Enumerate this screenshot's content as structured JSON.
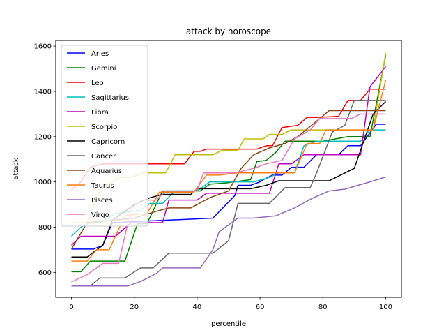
{
  "chart_data": {
    "type": "line",
    "title": "attack by horoscope",
    "xlabel": "percentile",
    "ylabel": "attack",
    "xlim": [
      -5,
      105
    ],
    "ylim": [
      490,
      1625
    ],
    "xticks": [
      0,
      20,
      40,
      60,
      80,
      100
    ],
    "yticks": [
      600,
      800,
      1000,
      1200,
      1400,
      1600
    ],
    "grid": false,
    "legend_position": "upper left",
    "series": [
      {
        "name": "Aries",
        "color": "#0000ff",
        "points": [
          [
            0,
            703
          ],
          [
            7,
            703
          ],
          [
            10,
            720
          ],
          [
            13,
            820
          ],
          [
            45,
            840
          ],
          [
            52,
            940
          ],
          [
            53,
            985
          ],
          [
            57,
            985
          ],
          [
            60,
            1000
          ],
          [
            61,
            1010
          ],
          [
            64,
            1030
          ],
          [
            67,
            1030
          ],
          [
            70,
            1065
          ],
          [
            74,
            1065
          ],
          [
            78,
            1120
          ],
          [
            85,
            1120
          ],
          [
            88,
            1160
          ],
          [
            92,
            1160
          ],
          [
            97,
            1255
          ],
          [
            100,
            1255
          ]
        ]
      },
      {
        "name": "Gemini",
        "color": "#008000",
        "points": [
          [
            0,
            603
          ],
          [
            3,
            603
          ],
          [
            6,
            650
          ],
          [
            17,
            650
          ],
          [
            21,
            815
          ],
          [
            24,
            815
          ],
          [
            29,
            960
          ],
          [
            41,
            960
          ],
          [
            44,
            990
          ],
          [
            49,
            995
          ],
          [
            57,
            1010
          ],
          [
            59,
            1090
          ],
          [
            62,
            1095
          ],
          [
            65,
            1130
          ],
          [
            68,
            1180
          ],
          [
            80,
            1180
          ],
          [
            88,
            1200
          ],
          [
            95,
            1200
          ],
          [
            100,
            1560
          ]
        ]
      },
      {
        "name": "Leo",
        "color": "#ff0000",
        "points": [
          [
            0,
            965
          ],
          [
            3,
            1000
          ],
          [
            6,
            1065
          ],
          [
            10,
            1080
          ],
          [
            36,
            1080
          ],
          [
            39,
            1135
          ],
          [
            41,
            1135
          ],
          [
            43,
            1145
          ],
          [
            59,
            1145
          ],
          [
            62,
            1160
          ],
          [
            64,
            1160
          ],
          [
            67,
            1240
          ],
          [
            72,
            1250
          ],
          [
            75,
            1285
          ],
          [
            78,
            1285
          ],
          [
            85,
            1290
          ],
          [
            88,
            1360
          ],
          [
            92,
            1360
          ],
          [
            95,
            1410
          ],
          [
            100,
            1410
          ]
        ]
      },
      {
        "name": "Sagittarius",
        "color": "#00bfbf",
        "points": [
          [
            0,
            760
          ],
          [
            3,
            800
          ],
          [
            6,
            820
          ],
          [
            9,
            820
          ],
          [
            14,
            860
          ],
          [
            22,
            875
          ],
          [
            25,
            905
          ],
          [
            29,
            905
          ],
          [
            33,
            960
          ],
          [
            40,
            960
          ],
          [
            44,
            1000
          ],
          [
            52,
            1000
          ],
          [
            58,
            1000
          ],
          [
            63,
            1020
          ],
          [
            66,
            1040
          ],
          [
            71,
            1040
          ],
          [
            74,
            1160
          ],
          [
            78,
            1180
          ],
          [
            86,
            1180
          ],
          [
            92,
            1180
          ],
          [
            95,
            1230
          ],
          [
            100,
            1230
          ]
        ]
      },
      {
        "name": "Libra",
        "color": "#bf00bf",
        "points": [
          [
            0,
            720
          ],
          [
            3,
            760
          ],
          [
            14,
            760
          ],
          [
            19,
            820
          ],
          [
            29,
            820
          ],
          [
            31,
            920
          ],
          [
            40,
            920
          ],
          [
            43,
            950
          ],
          [
            51,
            950
          ],
          [
            63,
            950
          ],
          [
            66,
            1080
          ],
          [
            70,
            1080
          ],
          [
            74,
            1120
          ],
          [
            88,
            1120
          ],
          [
            92,
            1120
          ],
          [
            95,
            1420
          ],
          [
            100,
            1510
          ]
        ]
      },
      {
        "name": "Scorpio",
        "color": "#bfbf00",
        "points": [
          [
            0,
            820
          ],
          [
            5,
            820
          ],
          [
            9,
            960
          ],
          [
            15,
            1020
          ],
          [
            19,
            1020
          ],
          [
            23,
            1040
          ],
          [
            30,
            1040
          ],
          [
            33,
            1120
          ],
          [
            45,
            1120
          ],
          [
            48,
            1140
          ],
          [
            53,
            1140
          ],
          [
            55,
            1190
          ],
          [
            61,
            1190
          ],
          [
            63,
            1210
          ],
          [
            67,
            1210
          ],
          [
            70,
            1230
          ],
          [
            75,
            1230
          ],
          [
            90,
            1230
          ],
          [
            96,
            1230
          ],
          [
            100,
            1570
          ]
        ]
      },
      {
        "name": "Capricorn",
        "color": "#000000",
        "points": [
          [
            0,
            668
          ],
          [
            5,
            668
          ],
          [
            10,
            720
          ],
          [
            13,
            830
          ],
          [
            20,
            900
          ],
          [
            25,
            930
          ],
          [
            29,
            945
          ],
          [
            38,
            945
          ],
          [
            40,
            970
          ],
          [
            49,
            970
          ],
          [
            57,
            970
          ],
          [
            62,
            985
          ],
          [
            66,
            1005
          ],
          [
            72,
            1005
          ],
          [
            82,
            1005
          ],
          [
            90,
            1060
          ],
          [
            96,
            1300
          ],
          [
            100,
            1355
          ]
        ]
      },
      {
        "name": "Cancer",
        "color": "#696969",
        "points": [
          [
            0,
            540
          ],
          [
            6,
            540
          ],
          [
            9,
            575
          ],
          [
            17,
            575
          ],
          [
            22,
            620
          ],
          [
            26,
            620
          ],
          [
            31,
            685
          ],
          [
            45,
            685
          ],
          [
            50,
            740
          ],
          [
            53,
            905
          ],
          [
            59,
            905
          ],
          [
            63,
            905
          ],
          [
            68,
            975
          ],
          [
            76,
            975
          ],
          [
            78,
            1040
          ],
          [
            83,
            1220
          ],
          [
            87,
            1250
          ],
          [
            90,
            1360
          ],
          [
            100,
            1360
          ]
        ]
      },
      {
        "name": "Aquarius",
        "color": "#8b4513",
        "points": [
          [
            0,
            703
          ],
          [
            5,
            820
          ],
          [
            13,
            830
          ],
          [
            20,
            840
          ],
          [
            27,
            870
          ],
          [
            31,
            885
          ],
          [
            38,
            885
          ],
          [
            44,
            930
          ],
          [
            50,
            960
          ],
          [
            54,
            1060
          ],
          [
            58,
            1120
          ],
          [
            63,
            1150
          ],
          [
            68,
            1170
          ],
          [
            72,
            1200
          ],
          [
            79,
            1280
          ],
          [
            82,
            1315
          ],
          [
            88,
            1315
          ],
          [
            100,
            1315
          ]
        ]
      },
      {
        "name": "Taurus",
        "color": "#ff7f0e",
        "points": [
          [
            0,
            650
          ],
          [
            5,
            650
          ],
          [
            8,
            700
          ],
          [
            12,
            700
          ],
          [
            17,
            850
          ],
          [
            19,
            855
          ],
          [
            24,
            860
          ],
          [
            28,
            955
          ],
          [
            39,
            955
          ],
          [
            43,
            1030
          ],
          [
            47,
            1030
          ],
          [
            53,
            1040
          ],
          [
            63,
            1040
          ],
          [
            71,
            1040
          ],
          [
            75,
            1170
          ],
          [
            79,
            1170
          ],
          [
            81,
            1230
          ],
          [
            87,
            1230
          ],
          [
            92,
            1230
          ],
          [
            96,
            1230
          ],
          [
            100,
            1450
          ]
        ]
      },
      {
        "name": "Pisces",
        "color": "#9467bd",
        "points": [
          [
            0,
            540
          ],
          [
            5,
            540
          ],
          [
            10,
            540
          ],
          [
            18,
            540
          ],
          [
            22,
            560
          ],
          [
            27,
            595
          ],
          [
            29,
            620
          ],
          [
            41,
            620
          ],
          [
            45,
            700
          ],
          [
            47,
            780
          ],
          [
            53,
            840
          ],
          [
            58,
            840
          ],
          [
            65,
            850
          ],
          [
            71,
            885
          ],
          [
            77,
            930
          ],
          [
            82,
            960
          ],
          [
            87,
            968
          ],
          [
            95,
            1000
          ],
          [
            100,
            1022
          ]
        ]
      },
      {
        "name": "Virgo",
        "color": "#e377c2",
        "points": [
          [
            0,
            558
          ],
          [
            5,
            590
          ],
          [
            10,
            640
          ],
          [
            15,
            640
          ],
          [
            19,
            880
          ],
          [
            22,
            920
          ],
          [
            27,
            920
          ],
          [
            30,
            960
          ],
          [
            40,
            960
          ],
          [
            42,
            1040
          ],
          [
            52,
            1040
          ],
          [
            58,
            1060
          ],
          [
            62,
            1080
          ],
          [
            67,
            1095
          ],
          [
            71,
            1190
          ],
          [
            76,
            1230
          ],
          [
            79,
            1280
          ],
          [
            89,
            1280
          ],
          [
            92,
            1300
          ],
          [
            100,
            1300
          ]
        ]
      }
    ]
  }
}
